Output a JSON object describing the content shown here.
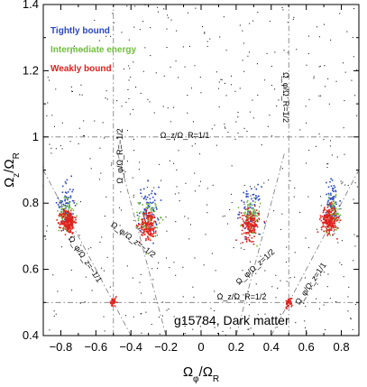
{
  "chart_data": {
    "type": "scatter",
    "xlabel": "Ω_φ/Ω_R",
    "ylabel": "Ω_z/Ω_R",
    "xlim": [
      -0.9,
      0.9
    ],
    "ylim": [
      0.4,
      1.4
    ],
    "xticks": [
      -0.8,
      -0.6,
      -0.4,
      -0.2,
      0.0,
      0.2,
      0.4,
      0.6,
      0.8
    ],
    "xtick_labels": [
      "−0.8",
      "−0.6",
      "−0.4",
      "−0.2",
      "0",
      "0.2",
      "0.4",
      "0.6",
      "0.8"
    ],
    "yticks": [
      0.4,
      0.6,
      0.8,
      1.0,
      1.2,
      1.4
    ],
    "ytick_labels": [
      "0.4",
      "0.6",
      "0.8",
      "1",
      "1.2",
      "1.4"
    ],
    "grid": false,
    "legend_position": "top-left",
    "legend": [
      {
        "label": "Tightly bound",
        "color": "#2a46c8"
      },
      {
        "label": "Intermediate energy",
        "color": "#6fc03a"
      },
      {
        "label": "Weakly bound",
        "color": "#e0201c"
      }
    ],
    "annotation": "g15784, Dark matter",
    "resonance_labels": [
      {
        "text": "Ω_z/Ω_R=1/1",
        "line": "y = 1"
      },
      {
        "text": "Ω_z/Ω_R=1/2",
        "line": "y = 0.5"
      },
      {
        "text": "Ω_φ/Ω_R=−1/2",
        "line": "x = −0.5"
      },
      {
        "text": "Ω_φ/Ω_R=1/2",
        "line": "x = 0.5"
      },
      {
        "text": "Ω_φ/Ω_z=−1/1",
        "line": "y = −x"
      },
      {
        "text": "Ω_φ/Ω_z=1/1",
        "line": "y = x"
      },
      {
        "text": "Ω_φ/Ω_z=−1/2",
        "line": "y = −2x"
      },
      {
        "text": "Ω_φ/Ω_z=1/2",
        "line": "y = 2x"
      }
    ],
    "series": [
      {
        "name": "Tightly bound",
        "color": "#2a46c8",
        "clusters": [
          {
            "x": -0.77,
            "y": 0.8,
            "sx": 0.022,
            "sy": 0.035,
            "n": 70
          },
          {
            "x": -0.3,
            "y": 0.78,
            "sx": 0.03,
            "sy": 0.035,
            "n": 70
          },
          {
            "x": 0.28,
            "y": 0.78,
            "sx": 0.03,
            "sy": 0.035,
            "n": 70
          },
          {
            "x": 0.75,
            "y": 0.8,
            "sx": 0.022,
            "sy": 0.035,
            "n": 70
          }
        ]
      },
      {
        "name": "Intermediate energy",
        "color": "#6fc03a",
        "clusters": [
          {
            "x": -0.77,
            "y": 0.765,
            "sx": 0.02,
            "sy": 0.025,
            "n": 70
          },
          {
            "x": -0.3,
            "y": 0.755,
            "sx": 0.028,
            "sy": 0.028,
            "n": 70
          },
          {
            "x": 0.28,
            "y": 0.755,
            "sx": 0.028,
            "sy": 0.028,
            "n": 70
          },
          {
            "x": 0.75,
            "y": 0.765,
            "sx": 0.02,
            "sy": 0.025,
            "n": 70
          }
        ]
      },
      {
        "name": "Weakly bound",
        "color": "#e0201c",
        "clusters": [
          {
            "x": -0.76,
            "y": 0.745,
            "sx": 0.02,
            "sy": 0.018,
            "n": 220
          },
          {
            "x": -0.3,
            "y": 0.735,
            "sx": 0.025,
            "sy": 0.022,
            "n": 150
          },
          {
            "x": 0.28,
            "y": 0.735,
            "sx": 0.025,
            "sy": 0.022,
            "n": 150
          },
          {
            "x": 0.73,
            "y": 0.75,
            "sx": 0.022,
            "sy": 0.02,
            "n": 220
          },
          {
            "x": -0.5,
            "y": 0.5,
            "sx": 0.01,
            "sy": 0.007,
            "n": 35
          },
          {
            "x": 0.5,
            "y": 0.5,
            "sx": 0.01,
            "sy": 0.007,
            "n": 35
          }
        ]
      },
      {
        "name": "",
        "color": "#222222",
        "clusters": [
          {
            "x": 0.0,
            "y": 0.9,
            "sx": 0.52,
            "sy": 0.29,
            "n": 500
          }
        ]
      }
    ]
  }
}
